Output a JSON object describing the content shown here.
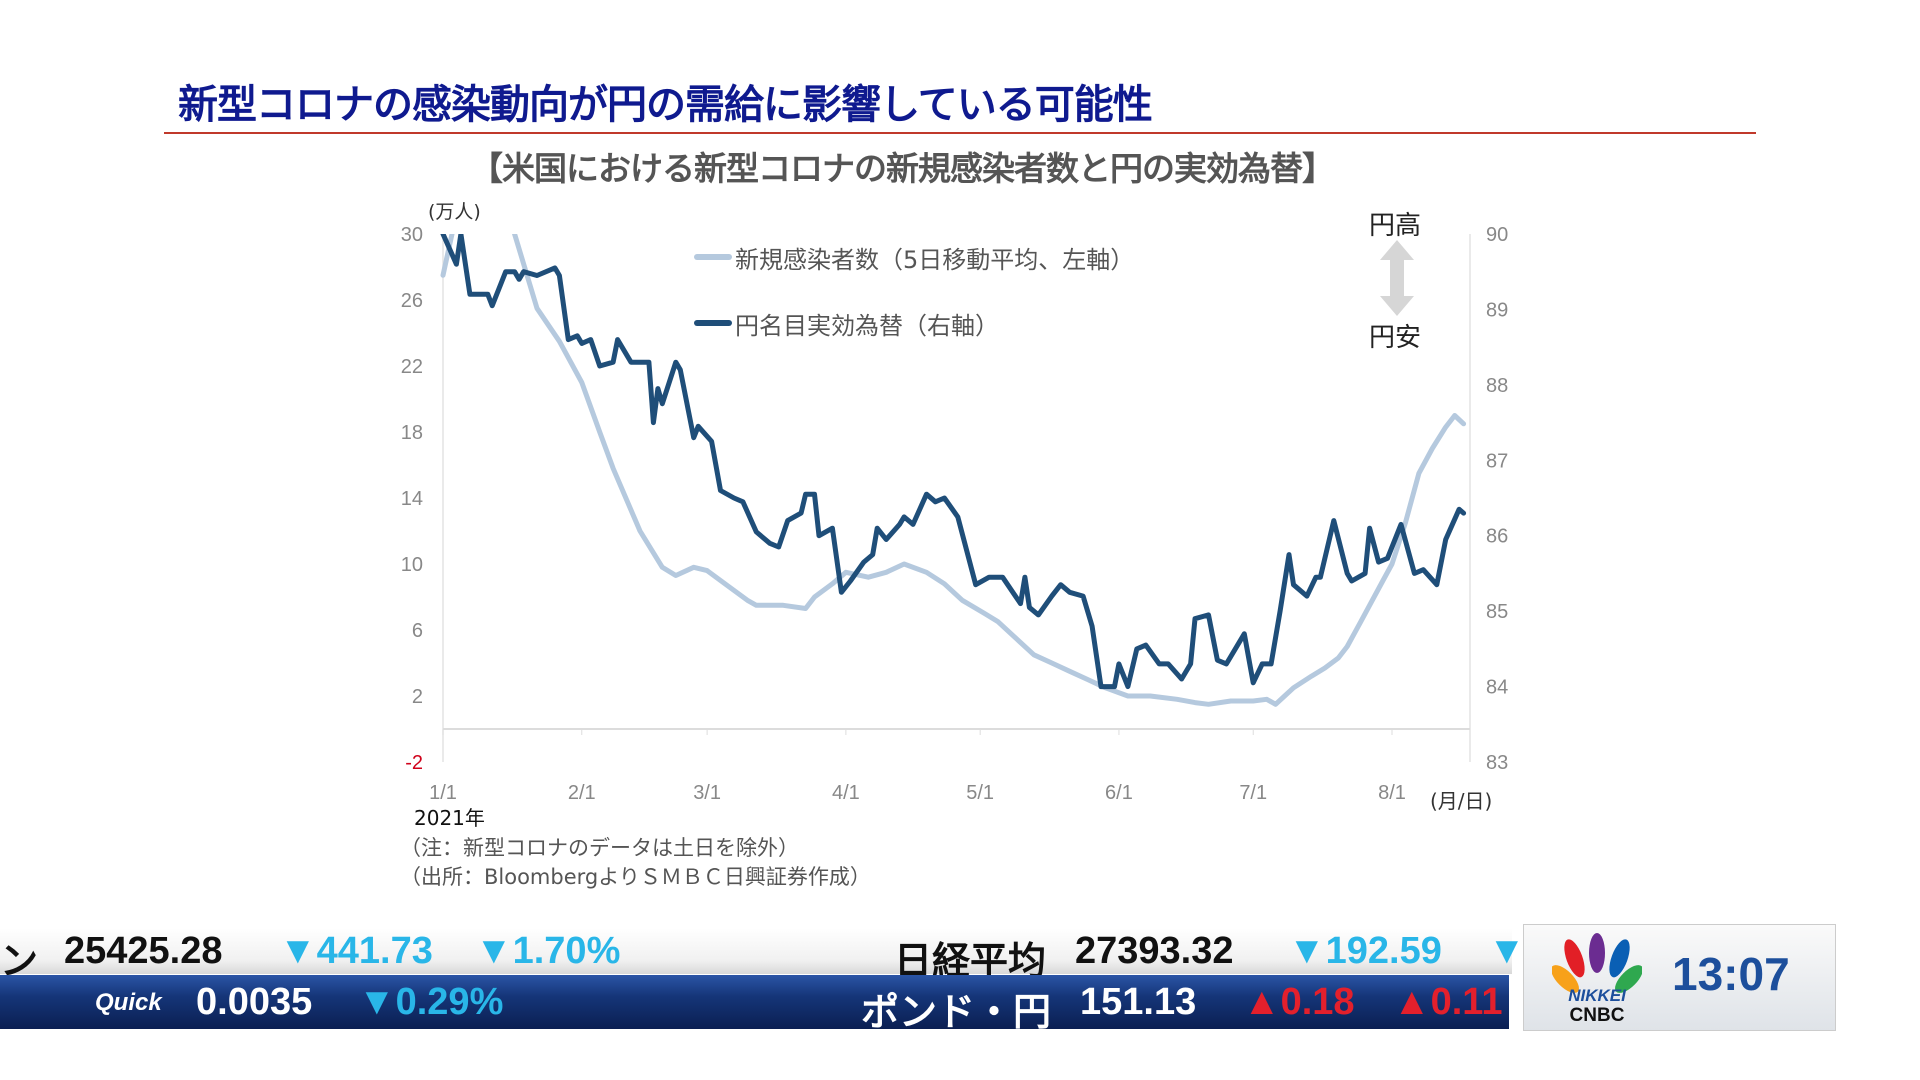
{
  "title": "新型コロナの感染動向が円の需給に影響している可能性",
  "subtitle": "【米国における新型コロナの新規感染者数と円の実効為替】",
  "legend": {
    "cases": "新規感染者数（5日移動平均、左軸）",
    "fx": "円名目実効為替（右軸）"
  },
  "direction": {
    "up": "円高",
    "down": "円安"
  },
  "notes": {
    "year": "2021年",
    "unit_x": "(月/日)",
    "unit_left": "(万人)",
    "note": "（注：新型コロナのデータは土日を除外）",
    "source": "（出所：BloombergよりＳＭＢＣ日興証券作成）"
  },
  "chart_data": {
    "type": "line",
    "title": "【米国における新型コロナの新規感染者数と円の実効為替】",
    "xlabel": "(月/日)",
    "ylabel_left": "(万人)",
    "x_unit": "days since 2021-01-01",
    "x_ticks": [
      {
        "day": 0,
        "label": "1/1"
      },
      {
        "day": 31,
        "label": "2/1"
      },
      {
        "day": 59,
        "label": "3/1"
      },
      {
        "day": 90,
        "label": "4/1"
      },
      {
        "day": 120,
        "label": "5/1"
      },
      {
        "day": 151,
        "label": "6/1"
      },
      {
        "day": 181,
        "label": "7/1"
      },
      {
        "day": 212,
        "label": "8/1"
      }
    ],
    "x_range": [
      0,
      230
    ],
    "y_left": {
      "range": [
        -2,
        30
      ],
      "ticks": [
        "30",
        "26",
        "22",
        "18",
        "14",
        "10",
        "6",
        "2",
        "-2"
      ]
    },
    "y_right": {
      "range": [
        83,
        90
      ],
      "ticks": [
        "90",
        "89",
        "88",
        "87",
        "86",
        "85",
        "84",
        "83"
      ]
    },
    "colors": {
      "cases": "#b5c9de",
      "fx": "#1f4e79",
      "neg_tick": "#d0021b"
    },
    "series": [
      {
        "name": "新規感染者数（5日移動平均、左軸）",
        "axis": "left",
        "points": [
          [
            0,
            27.5
          ],
          [
            2,
            30
          ],
          [
            3,
            31
          ],
          [
            15,
            31
          ],
          [
            16,
            30
          ],
          [
            21,
            25.5
          ],
          [
            26,
            23.5
          ],
          [
            31,
            21
          ],
          [
            35,
            18
          ],
          [
            38,
            15.8
          ],
          [
            44,
            12
          ],
          [
            49,
            9.8
          ],
          [
            52,
            9.3
          ],
          [
            56,
            9.8
          ],
          [
            59,
            9.6
          ],
          [
            64,
            8.6
          ],
          [
            68,
            7.8
          ],
          [
            70,
            7.5
          ],
          [
            76,
            7.5
          ],
          [
            81,
            7.3
          ],
          [
            83,
            8
          ],
          [
            87,
            8.8
          ],
          [
            90,
            9.5
          ],
          [
            95,
            9.2
          ],
          [
            99,
            9.5
          ],
          [
            103,
            10
          ],
          [
            108,
            9.5
          ],
          [
            112,
            8.8
          ],
          [
            116,
            7.8
          ],
          [
            121,
            7
          ],
          [
            124,
            6.5
          ],
          [
            128,
            5.5
          ],
          [
            132,
            4.5
          ],
          [
            136,
            4
          ],
          [
            140,
            3.5
          ],
          [
            144,
            3
          ],
          [
            148,
            2.5
          ],
          [
            153,
            2
          ],
          [
            158,
            2
          ],
          [
            164,
            1.8
          ],
          [
            168,
            1.6
          ],
          [
            171,
            1.5
          ],
          [
            176,
            1.7
          ],
          [
            181,
            1.7
          ],
          [
            184,
            1.8
          ],
          [
            186,
            1.5
          ],
          [
            188,
            2
          ],
          [
            190,
            2.5
          ],
          [
            194,
            3.2
          ],
          [
            197,
            3.7
          ],
          [
            200,
            4.3
          ],
          [
            202,
            5
          ],
          [
            205,
            6.5
          ],
          [
            207,
            7.5
          ],
          [
            210,
            9
          ],
          [
            212,
            10
          ],
          [
            215,
            12.5
          ],
          [
            218,
            15.5
          ],
          [
            221,
            17
          ],
          [
            224,
            18.3
          ],
          [
            226,
            19
          ],
          [
            228,
            18.5
          ]
        ]
      },
      {
        "name": "円名目実効為替（右軸）",
        "axis": "right",
        "points": [
          [
            0,
            90
          ],
          [
            3,
            89.6
          ],
          [
            4,
            90
          ],
          [
            6,
            89.2
          ],
          [
            10,
            89.2
          ],
          [
            11,
            89.05
          ],
          [
            14,
            89.5
          ],
          [
            16,
            89.5
          ],
          [
            17,
            89.4
          ],
          [
            18,
            89.5
          ],
          [
            21,
            89.45
          ],
          [
            25,
            89.55
          ],
          [
            26,
            89.45
          ],
          [
            28,
            88.6
          ],
          [
            30,
            88.65
          ],
          [
            31,
            88.55
          ],
          [
            33,
            88.6
          ],
          [
            35,
            88.25
          ],
          [
            38,
            88.3
          ],
          [
            39,
            88.6
          ],
          [
            42,
            88.3
          ],
          [
            46,
            88.3
          ],
          [
            47,
            87.5
          ],
          [
            48,
            87.95
          ],
          [
            49,
            87.75
          ],
          [
            52,
            88.3
          ],
          [
            53,
            88.2
          ],
          [
            56,
            87.3
          ],
          [
            57,
            87.45
          ],
          [
            60,
            87.25
          ],
          [
            62,
            86.6
          ],
          [
            65,
            86.5
          ],
          [
            67,
            86.45
          ],
          [
            70,
            86.05
          ],
          [
            73,
            85.9
          ],
          [
            75,
            85.85
          ],
          [
            77,
            86.2
          ],
          [
            80,
            86.3
          ],
          [
            81,
            86.55
          ],
          [
            83,
            86.55
          ],
          [
            84,
            86.0
          ],
          [
            87,
            86.1
          ],
          [
            89,
            85.25
          ],
          [
            91,
            85.4
          ],
          [
            94,
            85.65
          ],
          [
            96,
            85.75
          ],
          [
            97,
            86.1
          ],
          [
            99,
            85.95
          ],
          [
            102,
            86.15
          ],
          [
            103,
            86.25
          ],
          [
            105,
            86.15
          ],
          [
            108,
            86.55
          ],
          [
            110,
            86.45
          ],
          [
            112,
            86.5
          ],
          [
            115,
            86.25
          ],
          [
            119,
            85.35
          ],
          [
            122,
            85.45
          ],
          [
            125,
            85.45
          ],
          [
            129,
            85.1
          ],
          [
            130,
            85.45
          ],
          [
            131,
            85.05
          ],
          [
            133,
            84.95
          ],
          [
            136,
            85.2
          ],
          [
            138,
            85.35
          ],
          [
            140,
            85.25
          ],
          [
            143,
            85.2
          ],
          [
            145,
            84.8
          ],
          [
            147,
            84.0
          ],
          [
            150,
            84.0
          ],
          [
            151,
            84.3
          ],
          [
            153,
            84.0
          ],
          [
            155,
            84.5
          ],
          [
            157,
            84.55
          ],
          [
            160,
            84.3
          ],
          [
            162,
            84.3
          ],
          [
            165,
            84.1
          ],
          [
            167,
            84.3
          ],
          [
            168,
            84.9
          ],
          [
            171,
            84.95
          ],
          [
            173,
            84.35
          ],
          [
            175,
            84.3
          ],
          [
            179,
            84.7
          ],
          [
            181,
            84.05
          ],
          [
            183,
            84.3
          ],
          [
            185,
            84.3
          ],
          [
            187,
            85.0
          ],
          [
            189,
            85.75
          ],
          [
            190,
            85.35
          ],
          [
            193,
            85.2
          ],
          [
            195,
            85.45
          ],
          [
            196,
            85.45
          ],
          [
            199,
            86.2
          ],
          [
            202,
            85.5
          ],
          [
            203,
            85.4
          ],
          [
            206,
            85.5
          ],
          [
            207,
            86.1
          ],
          [
            209,
            85.65
          ],
          [
            211,
            85.7
          ],
          [
            214,
            86.15
          ],
          [
            217,
            85.5
          ],
          [
            219,
            85.55
          ],
          [
            222,
            85.35
          ],
          [
            224,
            85.95
          ],
          [
            227,
            86.35
          ],
          [
            228,
            86.3
          ]
        ]
      }
    ]
  },
  "ticker": {
    "top": [
      {
        "text": "ン",
        "cls": ""
      },
      {
        "text": "25425.28",
        "cls": ""
      },
      {
        "text": "▼441.73",
        "cls": "dn"
      },
      {
        "text": "▼1.70%",
        "cls": "dn"
      },
      {
        "text": "日経平均",
        "cls": ""
      },
      {
        "text": "27393.32",
        "cls": ""
      },
      {
        "text": "▼192.59",
        "cls": "dn"
      },
      {
        "text": "▼",
        "cls": "dn"
      }
    ],
    "bottom": [
      {
        "text": "Quick",
        "cls": "quick"
      },
      {
        "text": "0.0035",
        "cls": ""
      },
      {
        "text": "▼0.29%",
        "cls": "dn"
      },
      {
        "text": "ポンド・円",
        "cls": ""
      },
      {
        "text": "151.13",
        "cls": ""
      },
      {
        "text": "▲0.18",
        "cls": "up"
      },
      {
        "text": "▲0.11",
        "cls": "up"
      }
    ]
  },
  "logo": {
    "brand_top": "NIKKEI",
    "brand_bottom": "CNBC"
  },
  "clock": "13:07"
}
